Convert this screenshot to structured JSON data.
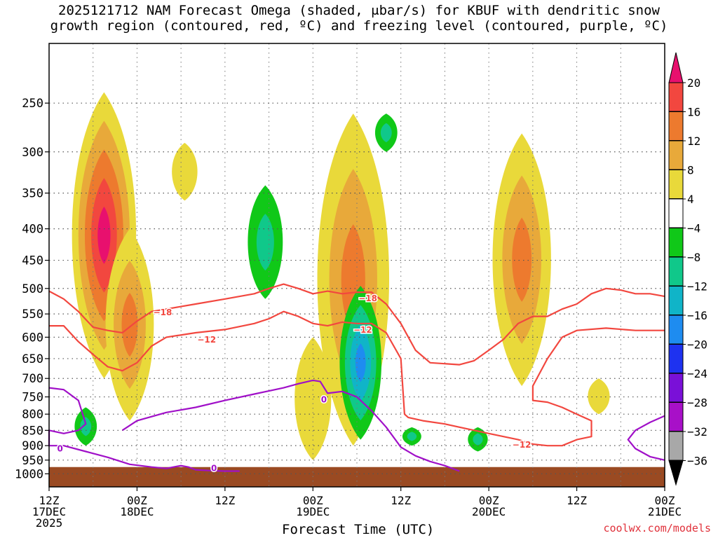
{
  "title_line1": "2025121712 NAM Forecast Omega (shaded, μbar/s) for KBUF with dendritic snow",
  "title_line2": "growth region (contoured, red, ºC) and freezing level (contoured, purple, ºC)",
  "credit": "coolwx.com/models",
  "chart_data": {
    "type": "heatmap",
    "xlabel": "Forecast Time (UTC)",
    "ylabel": "",
    "x_ticks": [
      {
        "t": 0,
        "l1": "12Z",
        "l2": "17DEC",
        "l3": "2025"
      },
      {
        "t": 12,
        "l1": "00Z",
        "l2": "18DEC",
        "l3": ""
      },
      {
        "t": 24,
        "l1": "12Z",
        "l2": "",
        "l3": ""
      },
      {
        "t": 36,
        "l1": "00Z",
        "l2": "19DEC",
        "l3": ""
      },
      {
        "t": 48,
        "l1": "12Z",
        "l2": "",
        "l3": ""
      },
      {
        "t": 60,
        "l1": "00Z",
        "l2": "20DEC",
        "l3": ""
      },
      {
        "t": 72,
        "l1": "12Z",
        "l2": "",
        "l3": ""
      },
      {
        "t": 84,
        "l1": "00Z",
        "l2": "21DEC",
        "l3": ""
      }
    ],
    "xlim": [
      0,
      84
    ],
    "y_ticks": [
      250,
      300,
      350,
      400,
      450,
      500,
      550,
      600,
      650,
      700,
      750,
      800,
      850,
      900,
      950,
      1000
    ],
    "ylim": [
      1050,
      200
    ],
    "log_pressure_axis": true,
    "grid": true,
    "colorbar": {
      "labels": [
        "20",
        "16",
        "12",
        "8",
        "4",
        "−4",
        "−8",
        "−12",
        "−16",
        "−20",
        "−24",
        "−28",
        "−32",
        "−36"
      ],
      "bins": [
        {
          "color": "#e8106e"
        },
        {
          "color": "#f2473f"
        },
        {
          "color": "#ed7a2e"
        },
        {
          "color": "#e8a93a"
        },
        {
          "color": "#e9d93a"
        },
        {
          "color": "#ffffff"
        },
        {
          "color": "#10c818"
        },
        {
          "color": "#10c88a"
        },
        {
          "color": "#10b4c8"
        },
        {
          "color": "#1e8cf0"
        },
        {
          "color": "#1e32f0"
        },
        {
          "color": "#7a10d8"
        },
        {
          "color": "#a810c8"
        },
        {
          "color": "#a8a8a8"
        },
        {
          "color": "#000000"
        }
      ]
    },
    "omega_features": [
      {
        "t_center": 7.5,
        "p_top": 240,
        "p_bot": 700,
        "max_value": 20
      },
      {
        "t_center": 11,
        "p_top": 400,
        "p_bot": 820,
        "max_value": 12
      },
      {
        "t_center": 18.5,
        "p_top": 290,
        "p_bot": 360,
        "max_value": 4
      },
      {
        "t_center": 29.5,
        "p_top": 340,
        "p_bot": 520,
        "max_value": -8
      },
      {
        "t_center": 5,
        "p_top": 780,
        "p_bot": 900,
        "max_value": -8
      },
      {
        "t_center": 41.5,
        "p_top": 260,
        "p_bot": 900,
        "max_value": 12
      },
      {
        "t_center": 42.5,
        "p_top": 495,
        "p_bot": 880,
        "max_value": -16
      },
      {
        "t_center": 46,
        "p_top": 260,
        "p_bot": 300,
        "max_value": -8
      },
      {
        "t_center": 49.5,
        "p_top": 840,
        "p_bot": 900,
        "max_value": -8
      },
      {
        "t_center": 58.5,
        "p_top": 840,
        "p_bot": 920,
        "max_value": -8
      },
      {
        "t_center": 64.5,
        "p_top": 280,
        "p_bot": 720,
        "max_value": 12
      },
      {
        "t_center": 75,
        "p_top": 700,
        "p_bot": 800,
        "max_value": 4
      },
      {
        "t_center": 36,
        "p_top": 600,
        "p_bot": 950,
        "max_value": 4
      }
    ],
    "series": [
      {
        "name": "−18",
        "color": "#f2473f",
        "points": [
          [
            0,
            505
          ],
          [
            2,
            520
          ],
          [
            4,
            545
          ],
          [
            6,
            578
          ],
          [
            8,
            585
          ],
          [
            10,
            590
          ],
          [
            12,
            565
          ],
          [
            14,
            545
          ],
          [
            16,
            540
          ],
          [
            18,
            535
          ],
          [
            20,
            530
          ],
          [
            24,
            520
          ],
          [
            28,
            510
          ],
          [
            30,
            500
          ],
          [
            32,
            492
          ],
          [
            34,
            500
          ],
          [
            36,
            510
          ],
          [
            38,
            505
          ],
          [
            40,
            510
          ],
          [
            42,
            507
          ],
          [
            44,
            507
          ],
          [
            46,
            530
          ],
          [
            48,
            570
          ],
          [
            50,
            630
          ],
          [
            52,
            660
          ],
          [
            56,
            665
          ],
          [
            58,
            655
          ],
          [
            60,
            630
          ],
          [
            62,
            605
          ],
          [
            64,
            570
          ],
          [
            66,
            555
          ],
          [
            68,
            555
          ],
          [
            70,
            540
          ],
          [
            72,
            530
          ],
          [
            74,
            510
          ],
          [
            76,
            500
          ],
          [
            78,
            503
          ],
          [
            80,
            510
          ],
          [
            82,
            510
          ],
          [
            84,
            515
          ]
        ]
      },
      {
        "name": "−12",
        "color": "#f2473f",
        "points": [
          [
            0,
            575
          ],
          [
            2,
            575
          ],
          [
            4,
            610
          ],
          [
            6,
            640
          ],
          [
            8,
            670
          ],
          [
            10,
            680
          ],
          [
            12,
            660
          ],
          [
            14,
            620
          ],
          [
            16,
            600
          ],
          [
            20,
            590
          ],
          [
            24,
            583
          ],
          [
            28,
            570
          ],
          [
            30,
            560
          ],
          [
            32,
            545
          ],
          [
            34,
            555
          ],
          [
            36,
            570
          ],
          [
            38,
            575
          ],
          [
            40,
            567
          ],
          [
            42,
            570
          ],
          [
            44,
            570
          ],
          [
            46,
            590
          ],
          [
            48,
            650
          ],
          [
            48.5,
            800
          ],
          [
            49,
            810
          ],
          [
            51,
            820
          ],
          [
            54,
            830
          ],
          [
            56,
            840
          ],
          [
            58,
            850
          ],
          [
            60,
            860
          ],
          [
            64,
            880
          ],
          [
            66,
            895
          ],
          [
            68,
            900
          ],
          [
            70,
            900
          ],
          [
            72,
            880
          ],
          [
            74,
            870
          ],
          [
            74,
            820
          ],
          [
            72,
            800
          ],
          [
            70,
            780
          ],
          [
            68,
            765
          ],
          [
            66,
            760
          ],
          [
            66,
            720
          ],
          [
            68,
            650
          ],
          [
            70,
            600
          ],
          [
            72,
            585
          ],
          [
            76,
            580
          ],
          [
            80,
            585
          ],
          [
            84,
            585
          ]
        ]
      },
      {
        "name": "0",
        "color": "#a010c8",
        "points": [
          [
            0,
            725
          ],
          [
            2,
            730
          ],
          [
            4,
            760
          ],
          [
            5,
            830
          ],
          [
            4,
            850
          ],
          [
            2,
            860
          ],
          [
            0,
            850
          ],
          [
            0,
            900
          ],
          [
            2,
            900
          ],
          [
            5,
            920
          ],
          [
            8,
            940
          ],
          [
            11,
            965
          ],
          [
            14,
            975
          ],
          [
            16,
            980
          ],
          [
            18,
            970
          ],
          [
            19,
            975
          ],
          [
            20,
            985
          ],
          [
            22,
            988
          ],
          [
            24,
            990
          ],
          [
            26,
            990
          ]
        ]
      },
      {
        "name": "0",
        "color": "#a010c8",
        "points": [
          [
            10,
            850
          ],
          [
            12,
            820
          ],
          [
            16,
            795
          ],
          [
            20,
            780
          ],
          [
            24,
            760
          ],
          [
            28,
            742
          ],
          [
            32,
            725
          ],
          [
            34,
            714
          ],
          [
            36,
            705
          ],
          [
            37,
            708
          ],
          [
            38,
            740
          ],
          [
            40,
            735
          ],
          [
            42,
            750
          ],
          [
            44,
            790
          ],
          [
            46,
            840
          ],
          [
            48,
            905
          ],
          [
            50,
            935
          ],
          [
            52,
            955
          ],
          [
            54,
            970
          ],
          [
            56,
            990
          ]
        ]
      },
      {
        "name": "0",
        "color": "#a010c8",
        "points": [
          [
            84,
            805
          ],
          [
            82,
            825
          ],
          [
            80,
            850
          ],
          [
            79,
            880
          ],
          [
            80,
            910
          ],
          [
            82,
            938
          ],
          [
            84,
            950
          ]
        ]
      }
    ],
    "contour_labels": [
      {
        "text": "−18",
        "t": 15.5,
        "p": 547
      },
      {
        "text": "−18",
        "t": 43.5,
        "p": 519
      },
      {
        "text": "−12",
        "t": 21.5,
        "p": 606
      },
      {
        "text": "−12",
        "t": 42.8,
        "p": 584
      },
      {
        "text": "−12",
        "t": 64.5,
        "p": 897
      },
      {
        "text": "0",
        "t": 1.5,
        "p": 910
      },
      {
        "text": "0",
        "t": 37.5,
        "p": 758
      },
      {
        "text": "0",
        "t": 22.5,
        "p": 980
      }
    ]
  }
}
